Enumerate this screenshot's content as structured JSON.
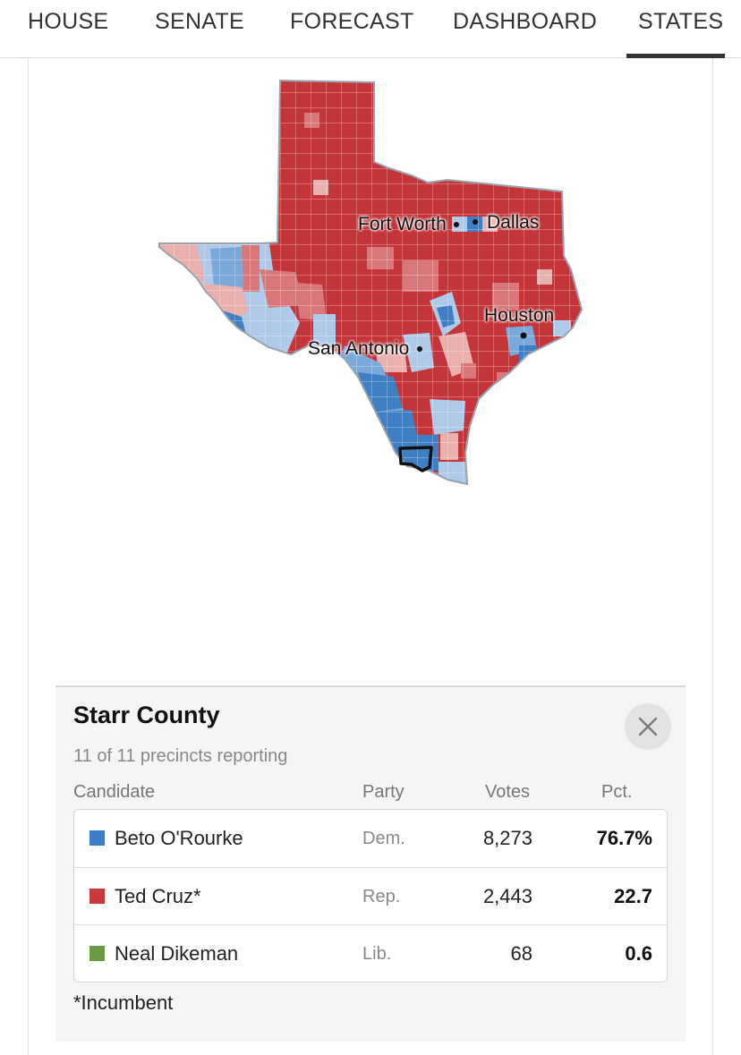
{
  "nav": {
    "items": [
      {
        "label": "HOUSE"
      },
      {
        "label": "SENATE"
      },
      {
        "label": "FORECAST"
      },
      {
        "label": "DASHBOARD"
      },
      {
        "label": "STATES",
        "selected": true
      }
    ]
  },
  "map": {
    "cities": {
      "fort_worth": "Fort Worth",
      "dallas": "Dallas",
      "houston": "Houston",
      "san_antonio": "San Antonio"
    },
    "colors": {
      "rep_strong": "#c4353a",
      "rep_mid": "#d9787a",
      "rep_light": "#e9b0ad",
      "dem_strong": "#3f7fc4",
      "dem_mid": "#7aa8d8",
      "dem_light": "#afc9e8",
      "highlight_outline": "#111111"
    },
    "highlighted_county": "Starr County"
  },
  "panel": {
    "title": "Starr County",
    "reporting": "11 of 11 precincts reporting",
    "headers": {
      "candidate": "Candidate",
      "party": "Party",
      "votes": "Votes",
      "pct": "Pct."
    },
    "rows": [
      {
        "candidate": "Beto O'Rourke",
        "party": "Dem.",
        "votes": "8,273",
        "pct": "76.7%",
        "color": "#3a7dc9"
      },
      {
        "candidate": "Ted Cruz*",
        "party": "Rep.",
        "votes": "2,443",
        "pct": "22.7",
        "color": "#c93a3c"
      },
      {
        "candidate": "Neal Dikeman",
        "party": "Lib.",
        "votes": "68",
        "pct": "0.6",
        "color": "#6a9a44"
      }
    ],
    "note": "*Incumbent"
  }
}
